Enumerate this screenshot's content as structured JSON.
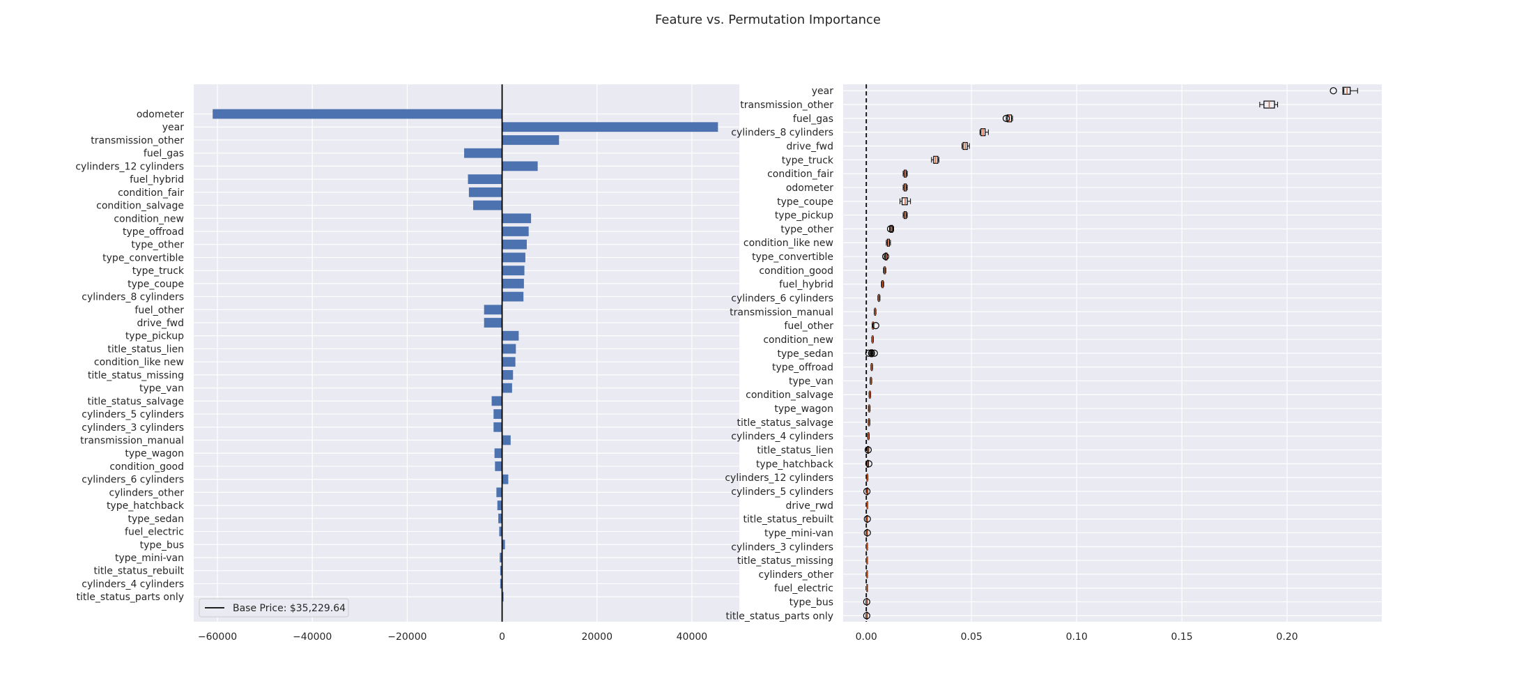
{
  "title": "Feature vs. Permutation Importance",
  "colors": {
    "background": "#eaeaf2",
    "grid": "#ffffff",
    "bar": "#4c72b0",
    "box_edge": "#000000",
    "median": "#d65f2a",
    "text": "#262626"
  },
  "chart_data": [
    {
      "type": "bar",
      "orientation": "horizontal",
      "categories": [
        "odometer",
        "year",
        "transmission_other",
        "fuel_gas",
        "cylinders_12 cylinders",
        "fuel_hybrid",
        "condition_fair",
        "condition_salvage",
        "condition_new",
        "type_offroad",
        "type_other",
        "type_convertible",
        "type_truck",
        "type_coupe",
        "cylinders_8 cylinders",
        "fuel_other",
        "drive_fwd",
        "type_pickup",
        "title_status_lien",
        "condition_like new",
        "title_status_missing",
        "type_van",
        "title_status_salvage",
        "cylinders_5 cylinders",
        "cylinders_3 cylinders",
        "transmission_manual",
        "type_wagon",
        "condition_good",
        "cylinders_6 cylinders",
        "cylinders_other",
        "type_hatchback",
        "type_sedan",
        "fuel_electric",
        "type_bus",
        "type_mini-van",
        "title_status_rebuilt",
        "cylinders_4 cylinders",
        "title_status_parts only"
      ],
      "values": [
        -61000,
        45500,
        12000,
        -8000,
        7500,
        -7200,
        -7000,
        -6100,
        6100,
        5600,
        5200,
        4900,
        4700,
        4600,
        4500,
        -3800,
        -3800,
        3500,
        2900,
        2800,
        2300,
        2100,
        -2200,
        -1800,
        -1800,
        1800,
        -1600,
        -1500,
        1300,
        -1200,
        -1000,
        -800,
        -600,
        600,
        -500,
        -400,
        -400,
        300
      ],
      "xlim": [
        -65000,
        50000
      ],
      "x_ticks": [
        -60000,
        -40000,
        -20000,
        0,
        20000,
        40000
      ],
      "x_tick_labels": [
        "−60000",
        "−40000",
        "−20000",
        "0",
        "20000",
        "40000"
      ],
      "reference_line": 0,
      "legend": {
        "label": "Base Price: $35,229.64",
        "position": "lower-left"
      },
      "grid": true
    },
    {
      "type": "box",
      "orientation": "horizontal",
      "categories": [
        "year",
        "transmission_other",
        "fuel_gas",
        "cylinders_8 cylinders",
        "drive_fwd",
        "type_truck",
        "condition_fair",
        "odometer",
        "type_coupe",
        "type_pickup",
        "type_other",
        "condition_like new",
        "type_convertible",
        "condition_good",
        "fuel_hybrid",
        "cylinders_6 cylinders",
        "transmission_manual",
        "fuel_other",
        "condition_new",
        "type_sedan",
        "type_offroad",
        "type_van",
        "condition_salvage",
        "type_wagon",
        "title_status_salvage",
        "cylinders_4 cylinders",
        "title_status_lien",
        "type_hatchback",
        "cylinders_12 cylinders",
        "cylinders_5 cylinders",
        "drive_rwd",
        "title_status_rebuilt",
        "type_mini-van",
        "cylinders_3 cylinders",
        "title_status_missing",
        "cylinders_other",
        "fuel_electric",
        "type_bus",
        "title_status_parts only"
      ],
      "stats": [
        {
          "wl": 0.227,
          "q1": 0.2265,
          "med": 0.2285,
          "q3": 0.23,
          "wh": 0.2335,
          "fl": [
            0.222
          ]
        },
        {
          "wl": 0.187,
          "q1": 0.189,
          "med": 0.1915,
          "q3": 0.194,
          "wh": 0.1955,
          "fl": []
        },
        {
          "wl": 0.0665,
          "q1": 0.067,
          "med": 0.068,
          "q3": 0.069,
          "wh": 0.0695,
          "fl": [
            0.0665
          ]
        },
        {
          "wl": 0.054,
          "q1": 0.0545,
          "med": 0.0555,
          "q3": 0.0565,
          "wh": 0.058,
          "fl": []
        },
        {
          "wl": 0.0455,
          "q1": 0.046,
          "med": 0.047,
          "q3": 0.048,
          "wh": 0.049,
          "fl": []
        },
        {
          "wl": 0.031,
          "q1": 0.032,
          "med": 0.033,
          "q3": 0.034,
          "wh": 0.0345,
          "fl": []
        },
        {
          "wl": 0.0175,
          "q1": 0.018,
          "med": 0.0185,
          "q3": 0.019,
          "wh": 0.0195,
          "fl": []
        },
        {
          "wl": 0.0175,
          "q1": 0.018,
          "med": 0.0185,
          "q3": 0.019,
          "wh": 0.0195,
          "fl": []
        },
        {
          "wl": 0.016,
          "q1": 0.017,
          "med": 0.0185,
          "q3": 0.0195,
          "wh": 0.021,
          "fl": []
        },
        {
          "wl": 0.0175,
          "q1": 0.018,
          "med": 0.0185,
          "q3": 0.019,
          "wh": 0.0195,
          "fl": []
        },
        {
          "wl": 0.011,
          "q1": 0.0115,
          "med": 0.012,
          "q3": 0.0125,
          "wh": 0.013,
          "fl": [
            0.0115
          ]
        },
        {
          "wl": 0.0095,
          "q1": 0.01,
          "med": 0.0105,
          "q3": 0.011,
          "wh": 0.0115,
          "fl": []
        },
        {
          "wl": 0.0085,
          "q1": 0.009,
          "med": 0.0095,
          "q3": 0.0098,
          "wh": 0.01,
          "fl": [
            0.0092
          ]
        },
        {
          "wl": 0.0082,
          "q1": 0.0085,
          "med": 0.0088,
          "q3": 0.009,
          "wh": 0.0093,
          "fl": []
        },
        {
          "wl": 0.0072,
          "q1": 0.0075,
          "med": 0.0078,
          "q3": 0.008,
          "wh": 0.0083,
          "fl": []
        },
        {
          "wl": 0.0055,
          "q1": 0.0058,
          "med": 0.006,
          "q3": 0.0062,
          "wh": 0.0065,
          "fl": []
        },
        {
          "wl": 0.0038,
          "q1": 0.004,
          "med": 0.0042,
          "q3": 0.0044,
          "wh": 0.0046,
          "fl": []
        },
        {
          "wl": 0.0028,
          "q1": 0.003,
          "med": 0.0032,
          "q3": 0.0034,
          "wh": 0.0036,
          "fl": [
            0.0045
          ]
        },
        {
          "wl": 0.0026,
          "q1": 0.0028,
          "med": 0.003,
          "q3": 0.0032,
          "wh": 0.0034,
          "fl": []
        },
        {
          "wl": 0.0015,
          "q1": 0.002,
          "med": 0.0025,
          "q3": 0.003,
          "wh": 0.0035,
          "fl": [
            0.0012,
            0.0025,
            0.0038
          ]
        },
        {
          "wl": 0.0022,
          "q1": 0.0024,
          "med": 0.0026,
          "q3": 0.0028,
          "wh": 0.003,
          "fl": []
        },
        {
          "wl": 0.0018,
          "q1": 0.002,
          "med": 0.0022,
          "q3": 0.0024,
          "wh": 0.0026,
          "fl": []
        },
        {
          "wl": 0.0013,
          "q1": 0.0015,
          "med": 0.0017,
          "q3": 0.0019,
          "wh": 0.0021,
          "fl": []
        },
        {
          "wl": 0.001,
          "q1": 0.0012,
          "med": 0.0014,
          "q3": 0.0016,
          "wh": 0.0018,
          "fl": []
        },
        {
          "wl": 0.0009,
          "q1": 0.0011,
          "med": 0.0013,
          "q3": 0.0015,
          "wh": 0.0017,
          "fl": []
        },
        {
          "wl": 0.0006,
          "q1": 0.0008,
          "med": 0.001,
          "q3": 0.0012,
          "wh": 0.0014,
          "fl": []
        },
        {
          "wl": 0.0004,
          "q1": 0.0006,
          "med": 0.0008,
          "q3": 0.001,
          "wh": 0.0012,
          "fl": [
            0.0009
          ]
        },
        {
          "wl": 0.0003,
          "q1": 0.0005,
          "med": 0.0007,
          "q3": 0.0009,
          "wh": 0.0011,
          "fl": [
            0.0012
          ]
        },
        {
          "wl": 0.0002,
          "q1": 0.0003,
          "med": 0.0005,
          "q3": 0.0006,
          "wh": 0.0008,
          "fl": []
        },
        {
          "wl": 0.0002,
          "q1": 0.0003,
          "med": 0.0004,
          "q3": 0.0005,
          "wh": 0.0007,
          "fl": [
            0.0003
          ]
        },
        {
          "wl": 0.0002,
          "q1": 0.0003,
          "med": 0.0004,
          "q3": 0.0005,
          "wh": 0.0006,
          "fl": []
        },
        {
          "wl": 0.0001,
          "q1": 0.0002,
          "med": 0.0003,
          "q3": 0.0004,
          "wh": 0.0005,
          "fl": [
            0.0005
          ]
        },
        {
          "wl": 0.0001,
          "q1": 0.0002,
          "med": 0.0003,
          "q3": 0.0004,
          "wh": 0.0005,
          "fl": [
            0.0005
          ]
        },
        {
          "wl": 0.0001,
          "q1": 0.0002,
          "med": 0.0003,
          "q3": 0.0004,
          "wh": 0.0005,
          "fl": []
        },
        {
          "wl": 0.0001,
          "q1": 0.0002,
          "med": 0.0003,
          "q3": 0.0004,
          "wh": 0.0005,
          "fl": []
        },
        {
          "wl": 0.0001,
          "q1": 0.0002,
          "med": 0.0003,
          "q3": 0.0004,
          "wh": 0.0005,
          "fl": []
        },
        {
          "wl": 0.0001,
          "q1": 0.0002,
          "med": 0.0002,
          "q3": 0.0003,
          "wh": 0.0004,
          "fl": []
        },
        {
          "wl": 0.0001,
          "q1": 0.0001,
          "med": 0.0002,
          "q3": 0.0002,
          "wh": 0.0003,
          "fl": [
            0.0002
          ]
        },
        {
          "wl": 0.0001,
          "q1": 0.0001,
          "med": 0.0002,
          "q3": 0.0002,
          "wh": 0.0003,
          "fl": [
            0.0002
          ]
        }
      ],
      "xlim": [
        -0.011,
        0.245
      ],
      "x_ticks": [
        0,
        0.05,
        0.1,
        0.15,
        0.2
      ],
      "x_tick_labels": [
        "0.00",
        "0.05",
        "0.10",
        "0.15",
        "0.20"
      ],
      "reference_line": 0,
      "reference_line_style": "dashed",
      "grid": true
    }
  ]
}
